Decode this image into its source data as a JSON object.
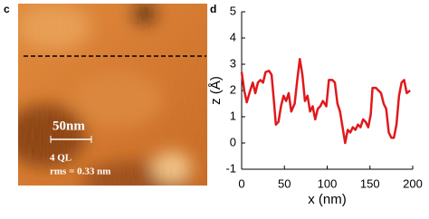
{
  "panels": {
    "c": "c",
    "d": "d"
  },
  "image": {
    "scale_bar": "50nm",
    "thickness": "4 QL",
    "rms": "rms = 0.33 nm"
  },
  "chart_data": {
    "type": "line",
    "xlabel": "x (nm)",
    "ylabel": "z (Å)",
    "x": [
      0,
      3,
      6,
      10,
      13,
      16,
      19,
      22,
      25,
      28,
      32,
      35,
      38,
      40,
      43,
      46,
      49,
      52,
      55,
      58,
      62,
      65,
      68,
      71,
      74,
      77,
      80,
      83,
      86,
      89,
      92,
      95,
      99,
      102,
      106,
      109,
      112,
      115,
      118,
      121,
      124,
      127,
      130,
      133,
      136,
      139,
      142,
      145,
      148,
      151,
      153,
      157,
      160,
      163,
      166,
      169,
      172,
      175,
      178,
      181,
      184,
      187,
      190,
      193,
      197
    ],
    "values": [
      2.7,
      2.0,
      1.55,
      2.0,
      2.3,
      1.9,
      2.3,
      2.4,
      2.3,
      2.7,
      2.75,
      2.6,
      1.5,
      0.7,
      0.8,
      1.4,
      1.8,
      1.6,
      1.9,
      1.2,
      1.5,
      2.4,
      3.2,
      2.6,
      1.6,
      1.8,
      1.2,
      1.4,
      0.9,
      1.3,
      1.4,
      1.6,
      1.4,
      2.4,
      2.4,
      2.3,
      1.5,
      1.2,
      0.6,
      0.0,
      0.5,
      0.4,
      0.6,
      0.5,
      0.7,
      0.6,
      0.9,
      0.8,
      0.6,
      1.1,
      2.1,
      2.1,
      2.0,
      1.9,
      1.5,
      1.3,
      0.4,
      0.2,
      0.2,
      0.7,
      1.8,
      2.3,
      2.4,
      1.9,
      2.0
    ],
    "color": "#e0191c",
    "xlim": [
      0,
      200
    ],
    "xticks": [
      0,
      50,
      100,
      150,
      200
    ],
    "ylim": [
      -1,
      5
    ],
    "yticks": [
      -1,
      0,
      1,
      2,
      3,
      4,
      5
    ]
  }
}
